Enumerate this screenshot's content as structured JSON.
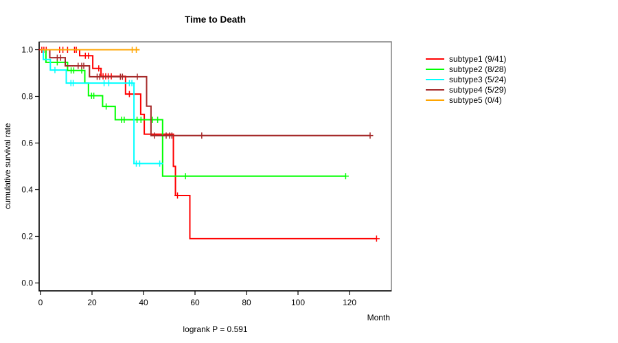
{
  "title": "Time to Death",
  "footnote": "logrank P = 0.591",
  "axes": {
    "x_label": "Month",
    "y_label": "cumulative survival rate",
    "x_tick_labels": [
      "0",
      "20",
      "40",
      "60",
      "80",
      "100",
      "120"
    ],
    "y_tick_labels": [
      "1.0",
      "0.8",
      "0.6",
      "0.4",
      "0.2",
      "0.0"
    ]
  },
  "colors": {
    "box_border": "#808080",
    "axis_line": "#000000",
    "background": "#ffffff"
  },
  "chart_data": {
    "type": "line",
    "subtype": "kaplan-meier-step",
    "title": "Time to Death",
    "xlabel": "Month",
    "ylabel": "cumulative survival rate",
    "annotation": "logrank P = 0.591",
    "xlim": [
      0,
      136
    ],
    "ylim": [
      0,
      1.03
    ],
    "xticks": [
      0,
      20,
      40,
      60,
      80,
      100,
      120
    ],
    "yticks": [
      1.0,
      0.8,
      0.6,
      0.4,
      0.2,
      0.0
    ],
    "grid": false,
    "legend_position": "right-outside",
    "series": [
      {
        "label": "subtype1 (9/41)",
        "color": "#FF0000",
        "steps": [
          [
            0,
            1
          ],
          [
            15.2,
            1
          ],
          [
            15.2,
            0.974
          ],
          [
            20.3,
            0.974
          ],
          [
            20.3,
            0.92
          ],
          [
            23.5,
            0.92
          ],
          [
            23.5,
            0.886
          ],
          [
            33,
            0.886
          ],
          [
            33,
            0.81
          ],
          [
            38.9,
            0.81
          ],
          [
            38.9,
            0.723
          ],
          [
            40.3,
            0.723
          ],
          [
            40.3,
            0.638
          ],
          [
            51.6,
            0.638
          ],
          [
            51.6,
            0.5
          ],
          [
            52.4,
            0.5
          ],
          [
            52.4,
            0.375
          ],
          [
            58,
            0.375
          ],
          [
            58,
            0.19
          ],
          [
            130.5,
            0.19
          ]
        ],
        "censors": [
          [
            0.5,
            1
          ],
          [
            1.3,
            1
          ],
          [
            2.2,
            1
          ],
          [
            7.4,
            1
          ],
          [
            8.7,
            1
          ],
          [
            10.5,
            1
          ],
          [
            13.2,
            1
          ],
          [
            13.9,
            1
          ],
          [
            17.4,
            0.974
          ],
          [
            18.6,
            0.974
          ],
          [
            22.6,
            0.92
          ],
          [
            24.3,
            0.886
          ],
          [
            25.3,
            0.886
          ],
          [
            26.3,
            0.886
          ],
          [
            27.5,
            0.886
          ],
          [
            34.5,
            0.81
          ],
          [
            53.2,
            0.375
          ],
          [
            130.5,
            0.19
          ]
        ]
      },
      {
        "label": "subtype2 (8/28)",
        "color": "#00FF00",
        "steps": [
          [
            0,
            1
          ],
          [
            2.1,
            1
          ],
          [
            2.1,
            0.946
          ],
          [
            10.5,
            0.946
          ],
          [
            10.5,
            0.911
          ],
          [
            17.2,
            0.911
          ],
          [
            17.2,
            0.857
          ],
          [
            18.6,
            0.857
          ],
          [
            18.6,
            0.803
          ],
          [
            24.1,
            0.803
          ],
          [
            24.1,
            0.757
          ],
          [
            29,
            0.757
          ],
          [
            29,
            0.7
          ],
          [
            47.4,
            0.7
          ],
          [
            47.4,
            0.458
          ],
          [
            118.5,
            0.458
          ]
        ],
        "censors": [
          [
            6.5,
            0.946
          ],
          [
            11.9,
            0.911
          ],
          [
            12.9,
            0.911
          ],
          [
            16,
            0.911
          ],
          [
            19.8,
            0.803
          ],
          [
            20.7,
            0.803
          ],
          [
            25.5,
            0.757
          ],
          [
            31.5,
            0.7
          ],
          [
            32.5,
            0.7
          ],
          [
            37.5,
            0.7
          ],
          [
            39,
            0.7
          ],
          [
            43.5,
            0.7
          ],
          [
            45.5,
            0.7
          ],
          [
            56.3,
            0.458
          ],
          [
            118.5,
            0.458
          ]
        ]
      },
      {
        "label": "subtype3 (5/24)",
        "color": "#00FFFF",
        "steps": [
          [
            0,
            1
          ],
          [
            1.1,
            1
          ],
          [
            1.1,
            0.958
          ],
          [
            3.8,
            0.958
          ],
          [
            3.8,
            0.913
          ],
          [
            10,
            0.913
          ],
          [
            10,
            0.857
          ],
          [
            36.3,
            0.857
          ],
          [
            36.3,
            0.512
          ],
          [
            47.6,
            0.512
          ]
        ],
        "censors": [
          [
            5.6,
            0.913
          ],
          [
            11.8,
            0.857
          ],
          [
            12.7,
            0.857
          ],
          [
            24.7,
            0.857
          ],
          [
            26.5,
            0.857
          ],
          [
            34.5,
            0.857
          ],
          [
            35.5,
            0.857
          ],
          [
            37.2,
            0.512
          ],
          [
            38.5,
            0.512
          ],
          [
            46.3,
            0.512
          ]
        ]
      },
      {
        "label": "subtype4 (5/29)",
        "color": "#A52A2A",
        "steps": [
          [
            0,
            1
          ],
          [
            3.6,
            1
          ],
          [
            3.6,
            0.966
          ],
          [
            9.6,
            0.966
          ],
          [
            9.6,
            0.931
          ],
          [
            19,
            0.931
          ],
          [
            19,
            0.884
          ],
          [
            41.2,
            0.884
          ],
          [
            41.2,
            0.758
          ],
          [
            42.9,
            0.758
          ],
          [
            42.9,
            0.632
          ],
          [
            128,
            0.632
          ]
        ],
        "censors": [
          [
            6.5,
            0.966
          ],
          [
            7.8,
            0.966
          ],
          [
            14.6,
            0.931
          ],
          [
            16,
            0.931
          ],
          [
            16.8,
            0.931
          ],
          [
            22,
            0.884
          ],
          [
            23,
            0.884
          ],
          [
            31,
            0.884
          ],
          [
            31.8,
            0.884
          ],
          [
            37.6,
            0.884
          ],
          [
            44.2,
            0.632
          ],
          [
            48.8,
            0.632
          ],
          [
            50.1,
            0.632
          ],
          [
            51,
            0.632
          ],
          [
            62.6,
            0.632
          ],
          [
            128,
            0.632
          ]
        ]
      },
      {
        "label": "subtype5 (0/4)",
        "color": "#FFA500",
        "steps": [
          [
            0,
            1
          ],
          [
            38.5,
            1
          ]
        ],
        "censors": [
          [
            35.6,
            1
          ],
          [
            37.2,
            1
          ]
        ]
      }
    ]
  }
}
